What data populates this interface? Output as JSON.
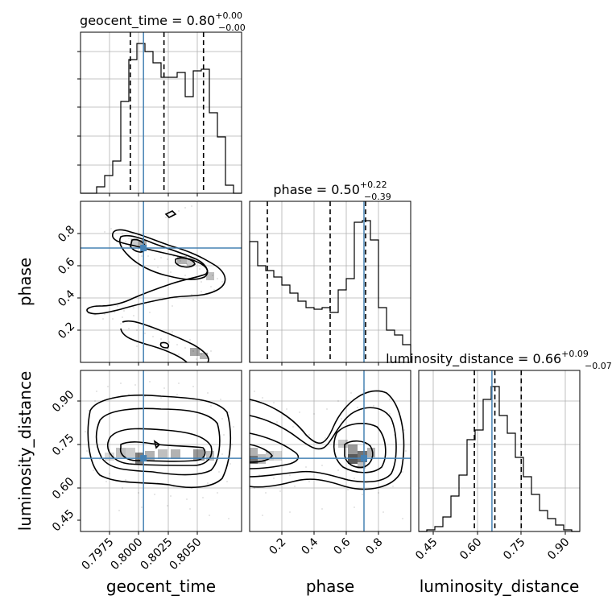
{
  "chart_data": {
    "type": "corner",
    "truth_color": "#4682b4",
    "panels": {
      "geocent_time_hist": {
        "type": "histogram",
        "title_prefix": "geocent_time = ",
        "title_value": "0.80",
        "title_plus": "+0.00",
        "title_minus": "−0.00",
        "xlim": [
          0.7955,
          0.8065
        ],
        "bin_edges": [
          0.7955,
          0.79605,
          0.7966,
          0.79715,
          0.7977,
          0.79825,
          0.7988,
          0.79935,
          0.7999,
          0.80045,
          0.801,
          0.80155,
          0.8021,
          0.80265,
          0.8032,
          0.80375,
          0.8043,
          0.80485,
          0.8054,
          0.80595,
          0.8065
        ],
        "counts": [
          0,
          0,
          4,
          11,
          20,
          57,
          83,
          93,
          88,
          81,
          72,
          72,
          75,
          60,
          76,
          77,
          50,
          35,
          5,
          0
        ],
        "ylim": [
          0,
          100
        ],
        "quantiles": [
          0.7989,
          0.8012,
          0.8039
        ],
        "truth": 0.7998
      },
      "phase_hist": {
        "type": "histogram",
        "title_prefix": "phase = ",
        "title_value": "0.50",
        "title_plus": "+0.22",
        "title_minus": "−0.39",
        "xlim": [
          0.0,
          1.0
        ],
        "bin_edges": [
          0.0,
          0.05,
          0.1,
          0.15,
          0.2,
          0.25,
          0.3,
          0.35,
          0.4,
          0.45,
          0.5,
          0.55,
          0.6,
          0.65,
          0.7,
          0.75,
          0.8,
          0.85,
          0.9,
          0.95,
          1.0
        ],
        "counts": [
          75,
          60,
          57,
          53,
          48,
          43,
          38,
          34,
          33,
          34,
          31,
          45,
          52,
          87,
          88,
          76,
          34,
          20,
          17,
          11
        ],
        "ylim": [
          0,
          100
        ],
        "quantiles": [
          0.11,
          0.5,
          0.72
        ],
        "truth": 0.71
      },
      "luminosity_distance_hist": {
        "type": "histogram",
        "title_prefix": "luminosity_distance = ",
        "title_value": "0.66",
        "title_plus": "+0.09",
        "title_minus": "−0.07",
        "xlim": [
          0.4,
          0.95
        ],
        "bin_edges": [
          0.4,
          0.4275,
          0.455,
          0.4825,
          0.51,
          0.5375,
          0.565,
          0.5925,
          0.62,
          0.6475,
          0.675,
          0.7025,
          0.73,
          0.7575,
          0.785,
          0.8125,
          0.84,
          0.8675,
          0.895,
          0.9225,
          0.95
        ],
        "counts": [
          0,
          1,
          3,
          9,
          22,
          35,
          57,
          63,
          82,
          90,
          72,
          61,
          46,
          34,
          23,
          13,
          8,
          4,
          1,
          0
        ],
        "ylim": [
          0,
          100
        ],
        "quantiles": [
          0.59,
          0.66,
          0.75
        ],
        "truth": 0.65
      },
      "phase_vs_geocent_time": {
        "type": "scatter-contour",
        "xlim": [
          0.7955,
          0.8065
        ],
        "ylim": [
          0.0,
          1.0
        ],
        "truth": [
          0.7998,
          0.71
        ]
      },
      "luminosity_distance_vs_geocent_time": {
        "type": "scatter-contour",
        "xlim": [
          0.7955,
          0.8065
        ],
        "ylim": [
          0.4,
          0.95
        ],
        "truth": [
          0.7998,
          0.65
        ]
      },
      "luminosity_distance_vs_phase": {
        "type": "scatter-contour",
        "xlim": [
          0.0,
          1.0
        ],
        "ylim": [
          0.4,
          0.95
        ],
        "truth": [
          0.71,
          0.65
        ]
      }
    },
    "axes": {
      "x_labels": [
        "geocent_time",
        "phase",
        "luminosity_distance"
      ],
      "y_labels": [
        "phase",
        "luminosity_distance"
      ],
      "geocent_time_ticks": [
        0.7975,
        0.8,
        0.8025,
        0.805
      ],
      "geocent_time_tick_labels": [
        "0.7975",
        "0.8000",
        "0.8025",
        "0.8050"
      ],
      "phase_ticks": [
        0.2,
        0.4,
        0.6,
        0.8
      ],
      "phase_tick_labels": [
        "0.2",
        "0.4",
        "0.6",
        "0.8"
      ],
      "luminosity_distance_ticks": [
        0.45,
        0.6,
        0.75,
        0.9
      ],
      "luminosity_distance_tick_labels": [
        "0.45",
        "0.60",
        "0.75",
        "0.90"
      ]
    },
    "grid": true
  }
}
